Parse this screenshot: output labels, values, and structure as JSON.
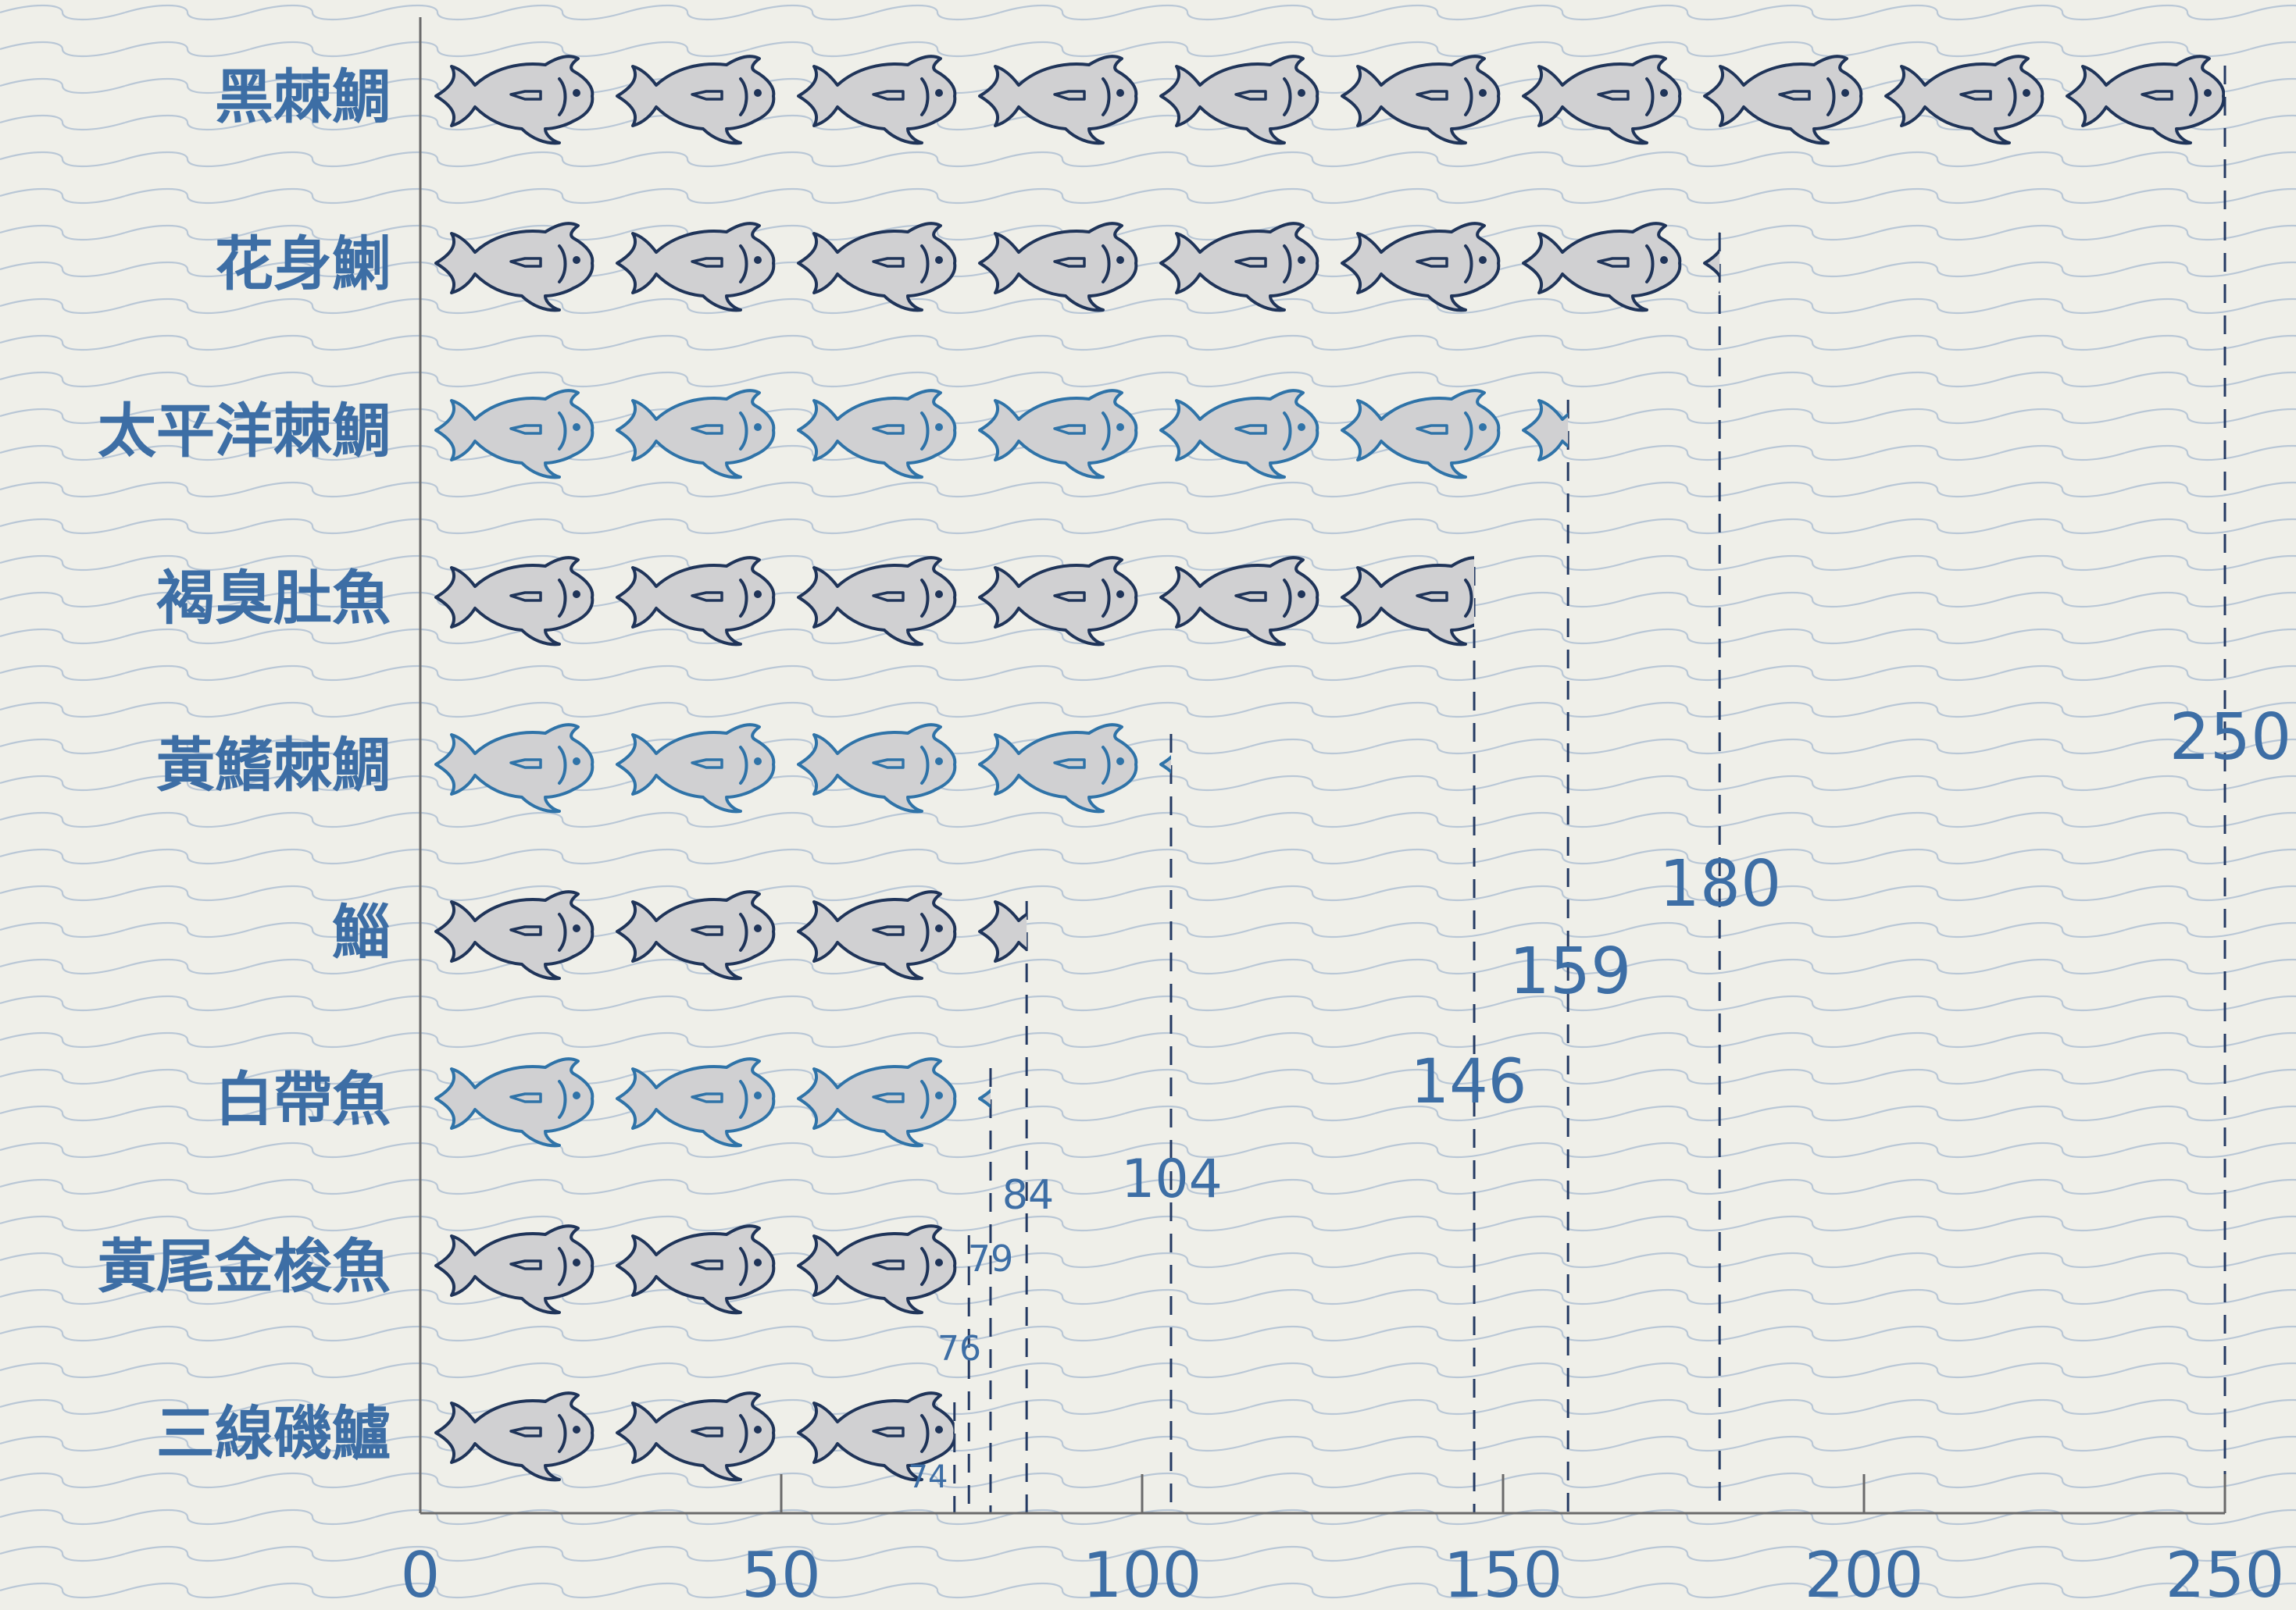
{
  "chart_data": {
    "type": "bar",
    "categories": [
      "黑棘鯛",
      "花身鯻",
      "太平洋棘鯛",
      "褐臭肚魚",
      "黃鰭棘鯛",
      "鯔",
      "白帶魚",
      "黃尾金梭魚",
      "三線磯鱸"
    ],
    "values": [
      250,
      180,
      159,
      146,
      104,
      84,
      79,
      76,
      74
    ],
    "value_labels": [
      "250",
      "180",
      "159",
      "146",
      "104",
      "84",
      "79",
      "76",
      "74"
    ],
    "units_per_icon": 25,
    "icon": "fish-icon",
    "xticks": [
      "0",
      "50",
      "100",
      "150",
      "200",
      "250"
    ],
    "xlim": [
      0,
      250
    ],
    "grid": false,
    "legend": "none"
  },
  "colors": {
    "background": "#efefe9",
    "wave": "#b9c7d6",
    "text": "#3d6ea5",
    "axis": "#6a6a6a",
    "dash": "#243a63",
    "fish_fill": "#d0d0d2",
    "fish_outline_dark": "#1f3459",
    "fish_outline_blue": "#2f73a8"
  }
}
